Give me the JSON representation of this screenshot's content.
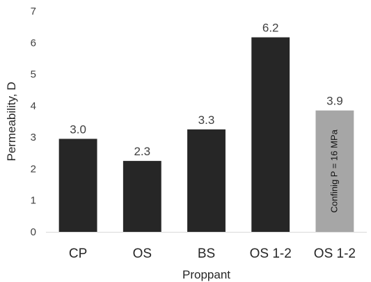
{
  "chart_data": {
    "type": "bar",
    "categories": [
      "CP",
      "OS",
      "BS",
      "OS 1-2",
      "OS 1-2"
    ],
    "values": [
      2.95,
      2.25,
      3.25,
      6.17,
      3.85
    ],
    "data_labels": [
      "3.0",
      "2.3",
      "3.3",
      "6.2",
      "3.9"
    ],
    "bar_colors": [
      "#262626",
      "#262626",
      "#262626",
      "#262626",
      "#a6a6a6"
    ],
    "bar_annotations": [
      "",
      "",
      "",
      "",
      "Confinig P = 16 MPa"
    ],
    "xlabel": "Proppant",
    "ylabel": "Permeability, D",
    "ylim": [
      0,
      7
    ],
    "yticks": [
      0,
      1,
      2,
      3,
      4,
      5,
      6,
      7
    ],
    "grid": false,
    "legend": "none"
  }
}
